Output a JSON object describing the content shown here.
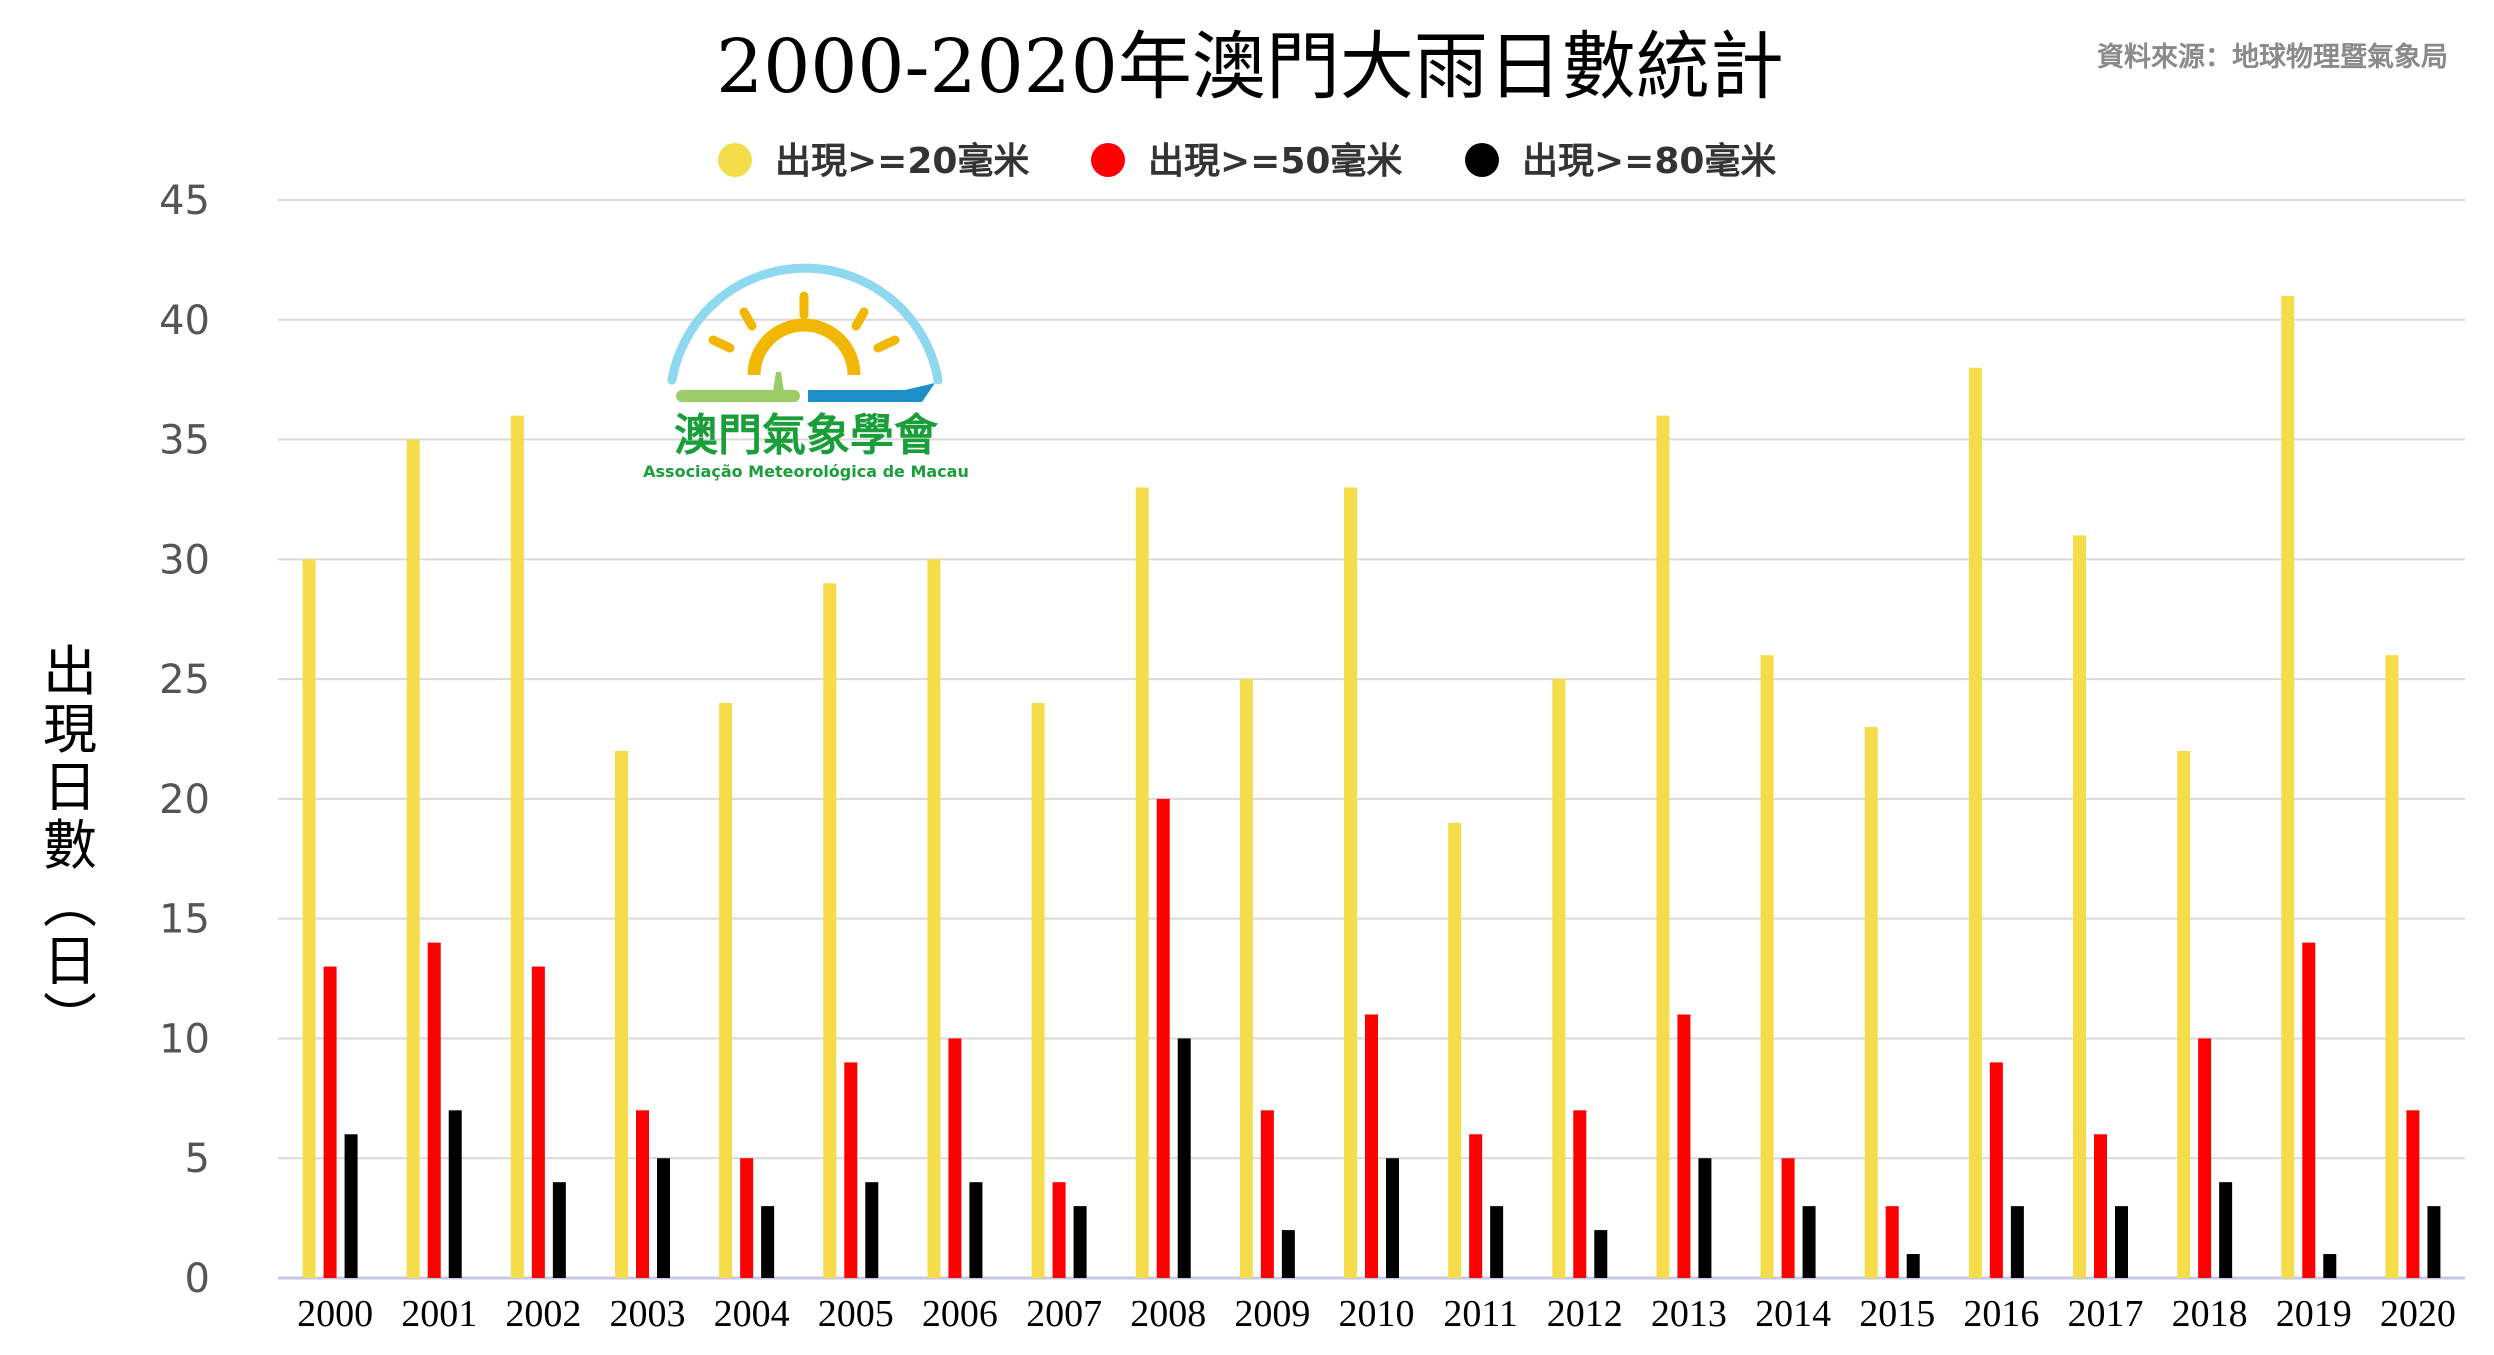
{
  "source_note": "資料來源：地球物理暨氣象局",
  "logo": {
    "name_zh": "澳門氣象學會",
    "name_pt": "Associação Meteorológica de Macau",
    "colors": {
      "arc": "#8ed8f0",
      "sun": "#f2b705",
      "land": "#9ccc65",
      "sea": "#1f8fc9",
      "text_zh": "#1a9e3a",
      "text_pt": "#1a9e3a"
    }
  },
  "chart_data": {
    "type": "bar",
    "title": "2000-2020年澳門大雨日數統計",
    "ylabel": "出現日數(日)",
    "ylim": [
      0,
      45
    ],
    "yticks": [
      0,
      5,
      10,
      15,
      20,
      25,
      30,
      35,
      40,
      45
    ],
    "grid": true,
    "legend_position": "top-center",
    "categories": [
      "2000",
      "2001",
      "2002",
      "2003",
      "2004",
      "2005",
      "2006",
      "2007",
      "2008",
      "2009",
      "2010",
      "2011",
      "2012",
      "2013",
      "2014",
      "2015",
      "2016",
      "2017",
      "2018",
      "2019",
      "2020"
    ],
    "series": [
      {
        "name": "出現>=20毫米",
        "color": "#f4dc4a",
        "values": [
          30,
          35,
          36,
          22,
          24,
          29,
          30,
          24,
          33,
          25,
          33,
          19,
          25,
          36,
          26,
          23,
          38,
          31,
          22,
          41,
          26
        ]
      },
      {
        "name": "出現>=50毫米",
        "color": "#ff0000",
        "values": [
          13,
          14,
          13,
          7,
          5,
          9,
          10,
          4,
          20,
          7,
          11,
          6,
          7,
          11,
          5,
          3,
          9,
          6,
          10,
          14,
          7
        ]
      },
      {
        "name": "出現>=80毫米",
        "color": "#000000",
        "values": [
          6,
          7,
          4,
          5,
          3,
          4,
          4,
          3,
          10,
          2,
          5,
          3,
          2,
          5,
          3,
          1,
          3,
          3,
          4,
          1,
          3
        ]
      }
    ]
  }
}
